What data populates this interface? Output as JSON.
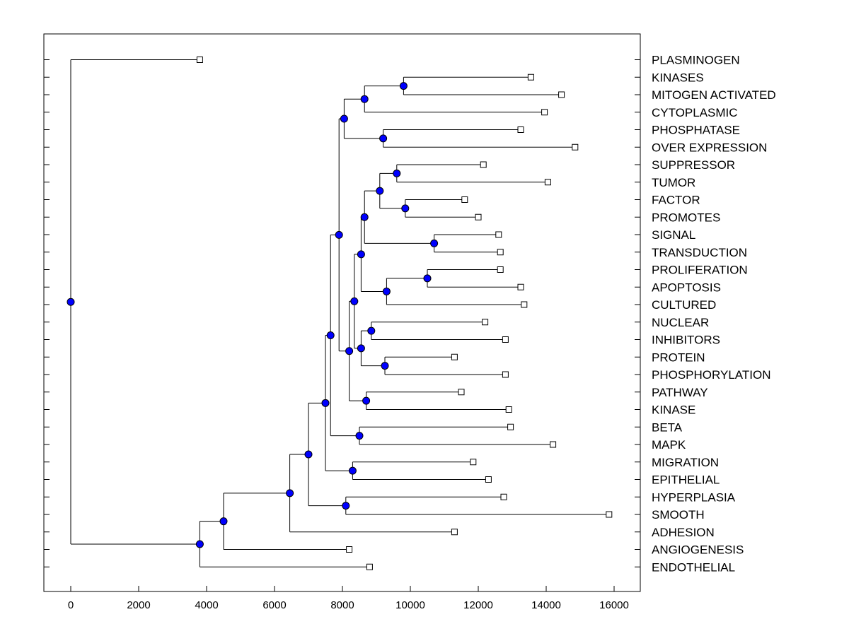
{
  "chart_data": {
    "type": "dendrogram",
    "title": "",
    "xlabel": "",
    "ylabel": "",
    "xlim": [
      -800,
      16600
    ],
    "x_ticks": [
      0,
      2000,
      4000,
      6000,
      8000,
      10000,
      12000,
      14000,
      16000
    ],
    "x_tick_labels": [
      "0",
      "2000",
      "4000",
      "6000",
      "8000",
      "10000",
      "12000",
      "14000",
      "16000"
    ],
    "leaves": [
      {
        "id": "L1",
        "label": "PLASMINOGEN",
        "x": 3800
      },
      {
        "id": "L2",
        "label": "KINASES",
        "x": 13550
      },
      {
        "id": "L3",
        "label": "MITOGEN ACTIVATED",
        "x": 14450
      },
      {
        "id": "L4",
        "label": "CYTOPLASMIC",
        "x": 13950
      },
      {
        "id": "L5",
        "label": "PHOSPHATASE",
        "x": 13250
      },
      {
        "id": "L6",
        "label": "OVER EXPRESSION",
        "x": 14850
      },
      {
        "id": "L7",
        "label": "SUPPRESSOR",
        "x": 12150
      },
      {
        "id": "L8",
        "label": "TUMOR",
        "x": 14050
      },
      {
        "id": "L9",
        "label": "FACTOR",
        "x": 11600
      },
      {
        "id": "L10",
        "label": "PROMOTES",
        "x": 12000
      },
      {
        "id": "L11",
        "label": "SIGNAL",
        "x": 12600
      },
      {
        "id": "L12",
        "label": "TRANSDUCTION",
        "x": 12650
      },
      {
        "id": "L13",
        "label": "PROLIFERATION",
        "x": 12650
      },
      {
        "id": "L14",
        "label": "APOPTOSIS",
        "x": 13250
      },
      {
        "id": "L15",
        "label": "CULTURED",
        "x": 13350
      },
      {
        "id": "L16",
        "label": "NUCLEAR",
        "x": 12200
      },
      {
        "id": "L17",
        "label": "INHIBITORS",
        "x": 12800
      },
      {
        "id": "L18",
        "label": "PROTEIN",
        "x": 11300
      },
      {
        "id": "L19",
        "label": "PHOSPHORYLATION",
        "x": 12800
      },
      {
        "id": "L20",
        "label": "PATHWAY",
        "x": 11500
      },
      {
        "id": "L21",
        "label": "KINASE",
        "x": 12900
      },
      {
        "id": "L22",
        "label": "BETA",
        "x": 12950
      },
      {
        "id": "L23",
        "label": "MAPK",
        "x": 14200
      },
      {
        "id": "L24",
        "label": "MIGRATION",
        "x": 11850
      },
      {
        "id": "L25",
        "label": "EPITHELIAL",
        "x": 12300
      },
      {
        "id": "L26",
        "label": "HYPERPLASIA",
        "x": 12750
      },
      {
        "id": "L27",
        "label": "SMOOTH",
        "x": 15850
      },
      {
        "id": "L28",
        "label": "ADHESION",
        "x": 11300
      },
      {
        "id": "L29",
        "label": "ANGIOGENESIS",
        "x": 8200
      },
      {
        "id": "L30",
        "label": "ENDOTHELIAL",
        "x": 8800
      }
    ],
    "merges": [
      {
        "id": "N_kin_mit",
        "x": 9800,
        "children": [
          "L2",
          "L3"
        ]
      },
      {
        "id": "N_cyto",
        "x": 8650,
        "children": [
          "N_kin_mit",
          "L4"
        ]
      },
      {
        "id": "N_phos_over",
        "x": 9200,
        "children": [
          "L5",
          "L6"
        ]
      },
      {
        "id": "N_top",
        "x": 8050,
        "children": [
          "N_cyto",
          "N_phos_over"
        ]
      },
      {
        "id": "N_sup_tum",
        "x": 9600,
        "children": [
          "L7",
          "L8"
        ]
      },
      {
        "id": "N_fac_pro",
        "x": 9850,
        "children": [
          "L9",
          "L10"
        ]
      },
      {
        "id": "N_stf",
        "x": 9100,
        "children": [
          "N_sup_tum",
          "N_fac_pro"
        ]
      },
      {
        "id": "N_sig_tra",
        "x": 10700,
        "children": [
          "L11",
          "L12"
        ]
      },
      {
        "id": "N_sfst",
        "x": 8650,
        "children": [
          "N_stf",
          "N_sig_tra"
        ]
      },
      {
        "id": "N_pro_apo",
        "x": 10500,
        "children": [
          "L13",
          "L14"
        ]
      },
      {
        "id": "N_pac",
        "x": 9300,
        "children": [
          "N_pro_apo",
          "L15"
        ]
      },
      {
        "id": "N_mid",
        "x": 8550,
        "children": [
          "N_sfst",
          "N_pac"
        ]
      },
      {
        "id": "N_nuc_inh",
        "x": 8850,
        "children": [
          "L16",
          "L17"
        ]
      },
      {
        "id": "N_prot_phos",
        "x": 9250,
        "children": [
          "L18",
          "L19"
        ]
      },
      {
        "id": "N_nipp",
        "x": 8550,
        "children": [
          "N_nuc_inh",
          "N_prot_phos"
        ]
      },
      {
        "id": "N_m2",
        "x": 8350,
        "children": [
          "N_mid",
          "N_nipp"
        ]
      },
      {
        "id": "N_path_kin",
        "x": 8700,
        "children": [
          "L20",
          "L21"
        ]
      },
      {
        "id": "N_m3",
        "x": 8200,
        "children": [
          "N_m2",
          "N_path_kin"
        ]
      },
      {
        "id": "N_m4",
        "x": 7900,
        "children": [
          "N_top",
          "N_m3"
        ]
      },
      {
        "id": "N_beta_mapk",
        "x": 8500,
        "children": [
          "L22",
          "L23"
        ]
      },
      {
        "id": "N_m5",
        "x": 7650,
        "children": [
          "N_m4",
          "N_beta_mapk"
        ]
      },
      {
        "id": "N_mig_epi",
        "x": 8300,
        "children": [
          "L24",
          "L25"
        ]
      },
      {
        "id": "N_m6",
        "x": 7500,
        "children": [
          "N_m5",
          "N_mig_epi"
        ]
      },
      {
        "id": "N_hyp_smo",
        "x": 8100,
        "children": [
          "L26",
          "L27"
        ]
      },
      {
        "id": "N_m7",
        "x": 7000,
        "children": [
          "N_m6",
          "N_hyp_smo"
        ]
      },
      {
        "id": "N_m8",
        "x": 6450,
        "children": [
          "N_m7",
          "L28"
        ]
      },
      {
        "id": "N_m9",
        "x": 4500,
        "children": [
          "N_m8",
          "L29"
        ]
      },
      {
        "id": "N_m10",
        "x": 3800,
        "children": [
          "N_m9",
          "L30"
        ]
      },
      {
        "id": "N_root",
        "x": 0,
        "children": [
          "L1",
          "N_m10"
        ]
      }
    ],
    "colors": {
      "node_fill": "#0000ff",
      "line": "#000000",
      "leaf_marker_fill": "#ffffff",
      "background": "#ffffff"
    }
  }
}
